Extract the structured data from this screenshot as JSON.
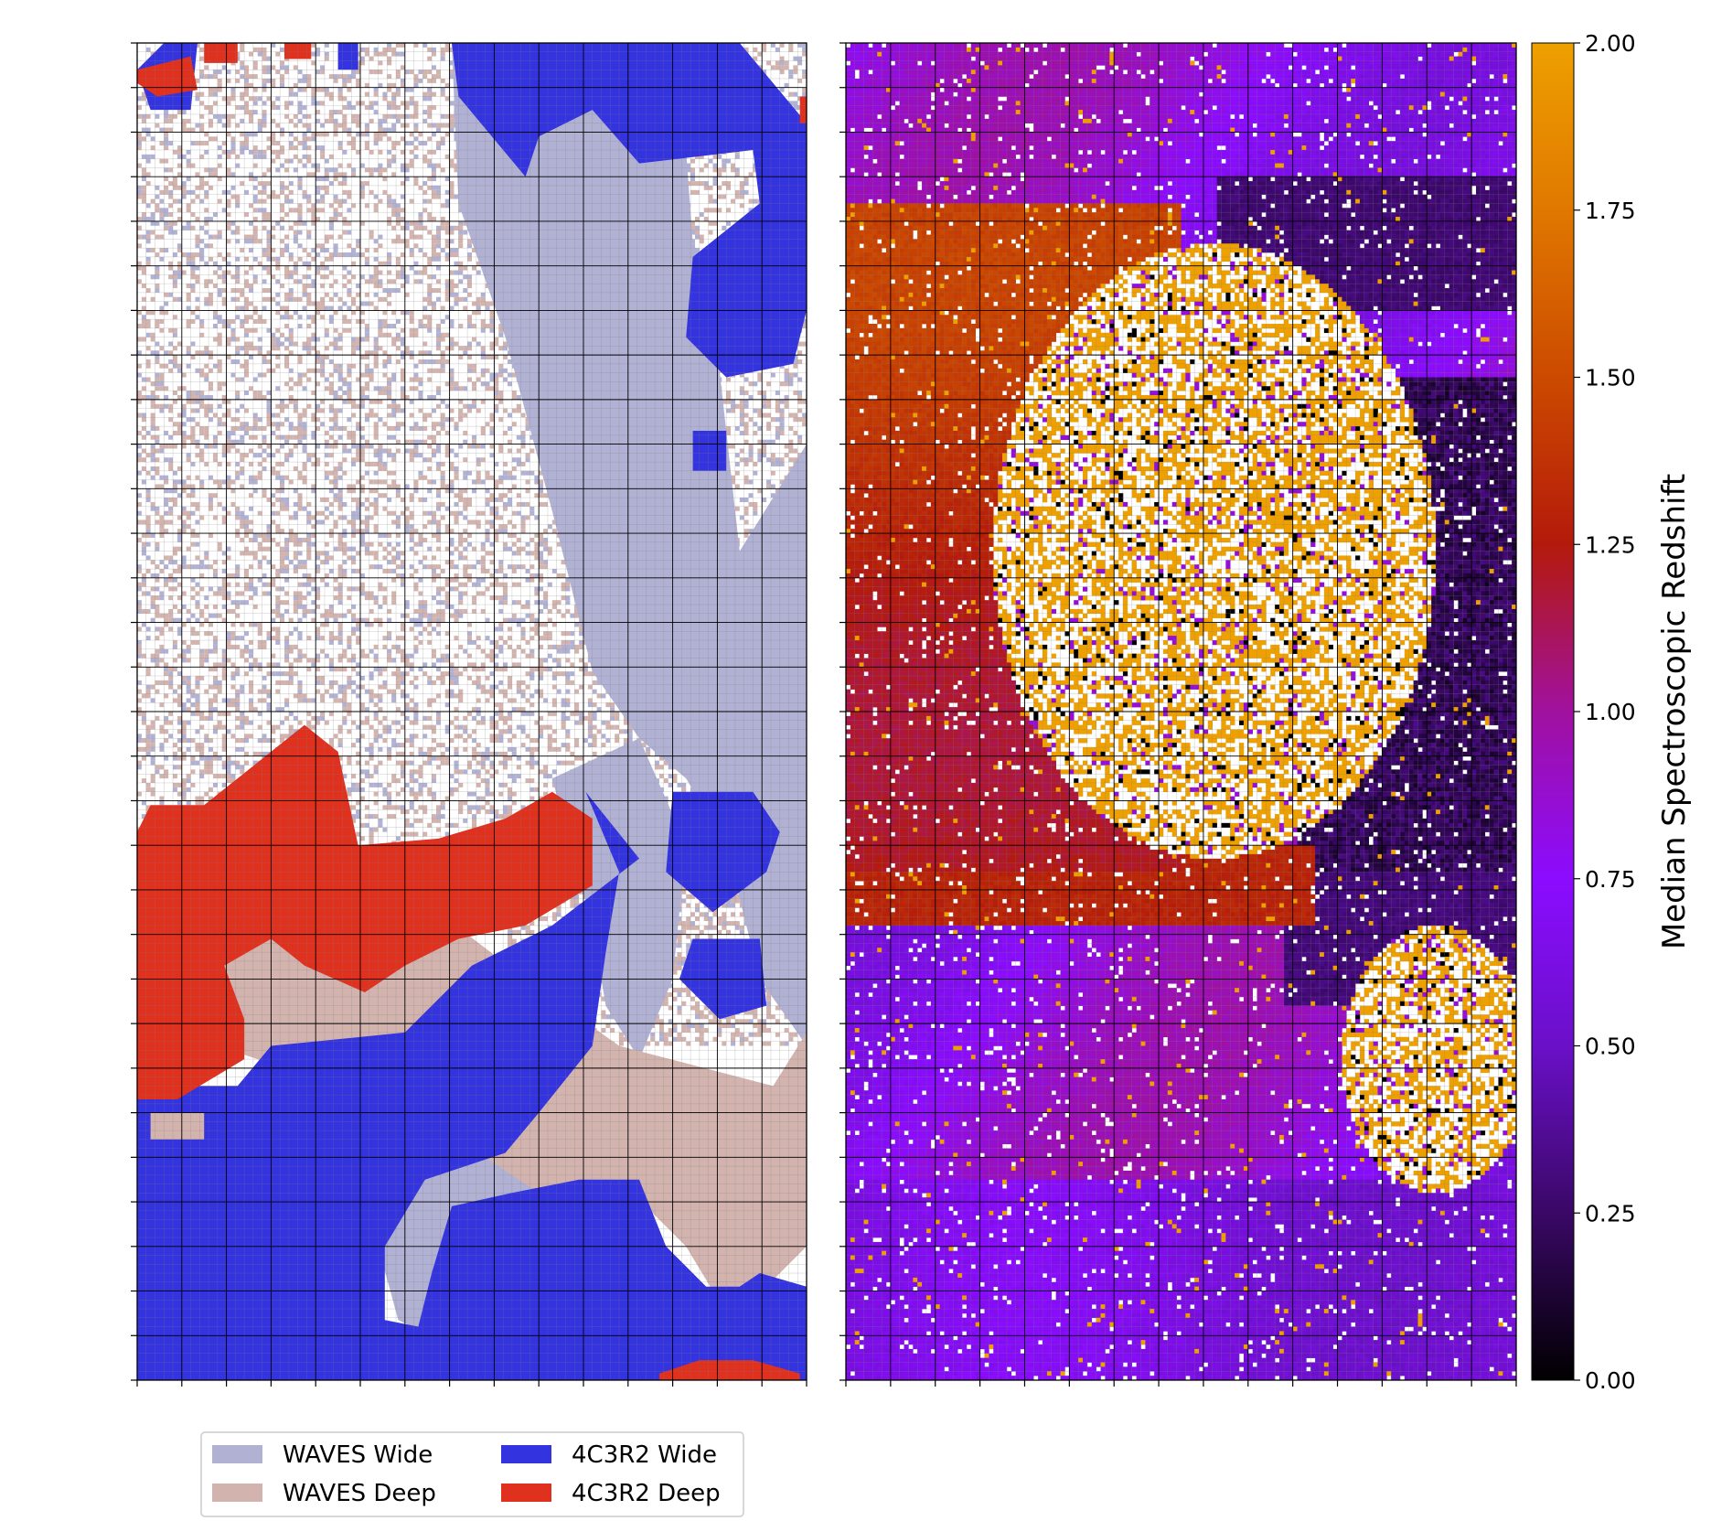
{
  "chart_data": [
    {
      "type": "heatmap",
      "title": "",
      "xlabel": "",
      "ylabel": "",
      "grid": true,
      "grid_cells": {
        "cols": 150,
        "rows": 300
      },
      "major_ticks": {
        "x_count": 15,
        "y_count": 30
      },
      "tick_labels_shown": false,
      "legend": {
        "placement": "bottom-left, below plot",
        "columns": 2,
        "entries": [
          {
            "label": "WAVES Wide",
            "color": "#b1b1d4"
          },
          {
            "label": "WAVES Deep",
            "color": "#d3b3ae"
          },
          {
            "label": "4C3R2 Wide",
            "color": "#3333df"
          },
          {
            "label": "4C3R2 Deep",
            "color": "#e0301e"
          }
        ]
      },
      "categories": [
        "WAVES Wide",
        "WAVES Deep",
        "4C3R2 Wide",
        "4C3R2 Deep"
      ],
      "empty_cell_color": "#ffffff"
    },
    {
      "type": "heatmap",
      "title": "",
      "xlabel": "",
      "ylabel": "",
      "grid": true,
      "grid_cells": {
        "cols": 150,
        "rows": 300
      },
      "major_ticks": {
        "x_count": 15,
        "y_count": 30
      },
      "tick_labels_shown": false,
      "colorbar": {
        "label": "Median Spectroscopic Redshift",
        "range": [
          0,
          2
        ],
        "ticks": [
          "0.00",
          "0.25",
          "0.50",
          "0.75",
          "1.00",
          "1.25",
          "1.50",
          "1.75",
          "2.00"
        ],
        "tick_values": [
          0,
          0.25,
          0.5,
          0.75,
          1.0,
          1.25,
          1.5,
          1.75,
          2.0
        ],
        "colormap": [
          "#000000",
          "#3a0866",
          "#6a10c8",
          "#8b0cff",
          "#a0119f",
          "#b41a0b",
          "#cc4a00",
          "#e07800",
          "#eea000"
        ]
      },
      "empty_cell_color": "#ffffff"
    }
  ]
}
